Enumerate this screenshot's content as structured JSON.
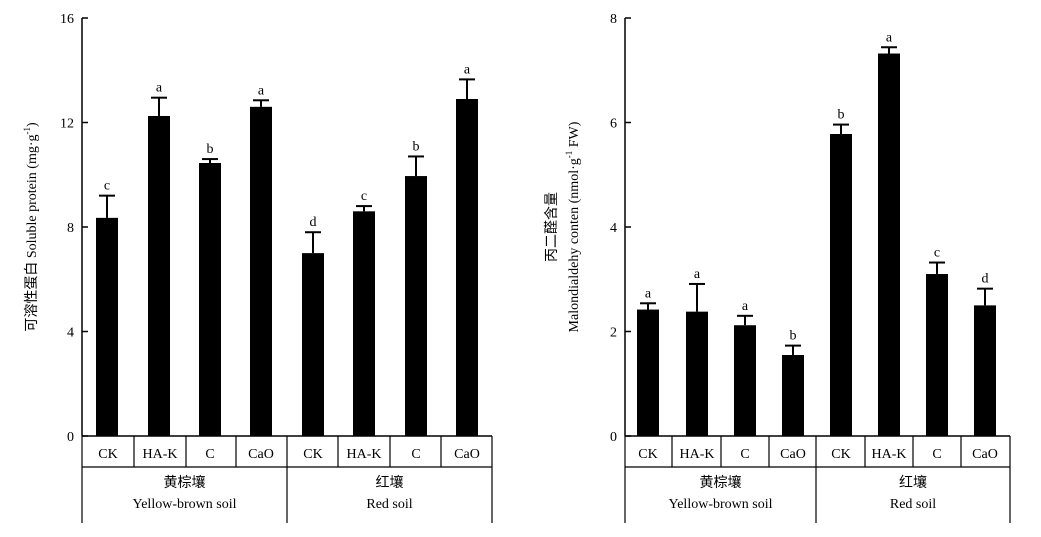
{
  "chart_data": [
    {
      "type": "bar",
      "ylabel": "可溶性蛋白 Soluble protein (mg·g",
      "ylabel_sup": "-1",
      "ylabel_end": ")",
      "ylim": [
        0,
        16
      ],
      "yticks": [
        "0",
        "4",
        "8",
        "12",
        "16"
      ],
      "categories": [
        "CK",
        "HA-K",
        "C",
        "CaO",
        "CK",
        "HA-K",
        "C",
        "CaO"
      ],
      "values": [
        8.35,
        12.25,
        10.45,
        12.6,
        7.0,
        8.6,
        9.95,
        12.9
      ],
      "errors": [
        0.85,
        0.7,
        0.15,
        0.25,
        0.8,
        0.2,
        0.75,
        0.75
      ],
      "letters": [
        "c",
        "a",
        "b",
        "a",
        "d",
        "c",
        "b",
        "a"
      ],
      "groups": [
        {
          "name_cn": "黄棕壤",
          "name_en": "Yellow-brown soil"
        },
        {
          "name_cn": "红壤",
          "name_en": "Red soil"
        }
      ],
      "bar_color": "#000000",
      "grid": false
    },
    {
      "type": "bar",
      "ylabel_cn": "丙二醛含量",
      "ylabel": "Malondialdehy conten (nmol·g",
      "ylabel_sup": "-1",
      "ylabel_end": " FW)",
      "ylim": [
        0,
        8
      ],
      "yticks": [
        "0",
        "2",
        "4",
        "6",
        "8"
      ],
      "categories": [
        "CK",
        "HA-K",
        "C",
        "CaO",
        "CK",
        "HA-K",
        "C",
        "CaO"
      ],
      "values": [
        2.42,
        2.38,
        2.12,
        1.55,
        5.78,
        7.32,
        3.1,
        2.5
      ],
      "errors": [
        0.12,
        0.53,
        0.18,
        0.18,
        0.18,
        0.12,
        0.22,
        0.32
      ],
      "letters": [
        "a",
        "a",
        "a",
        "b",
        "b",
        "a",
        "c",
        "d"
      ],
      "groups": [
        {
          "name_cn": "黄棕壤",
          "name_en": "Yellow-brown soil"
        },
        {
          "name_cn": "红壤",
          "name_en": "Red soil"
        }
      ],
      "bar_color": "#000000",
      "grid": false
    }
  ]
}
